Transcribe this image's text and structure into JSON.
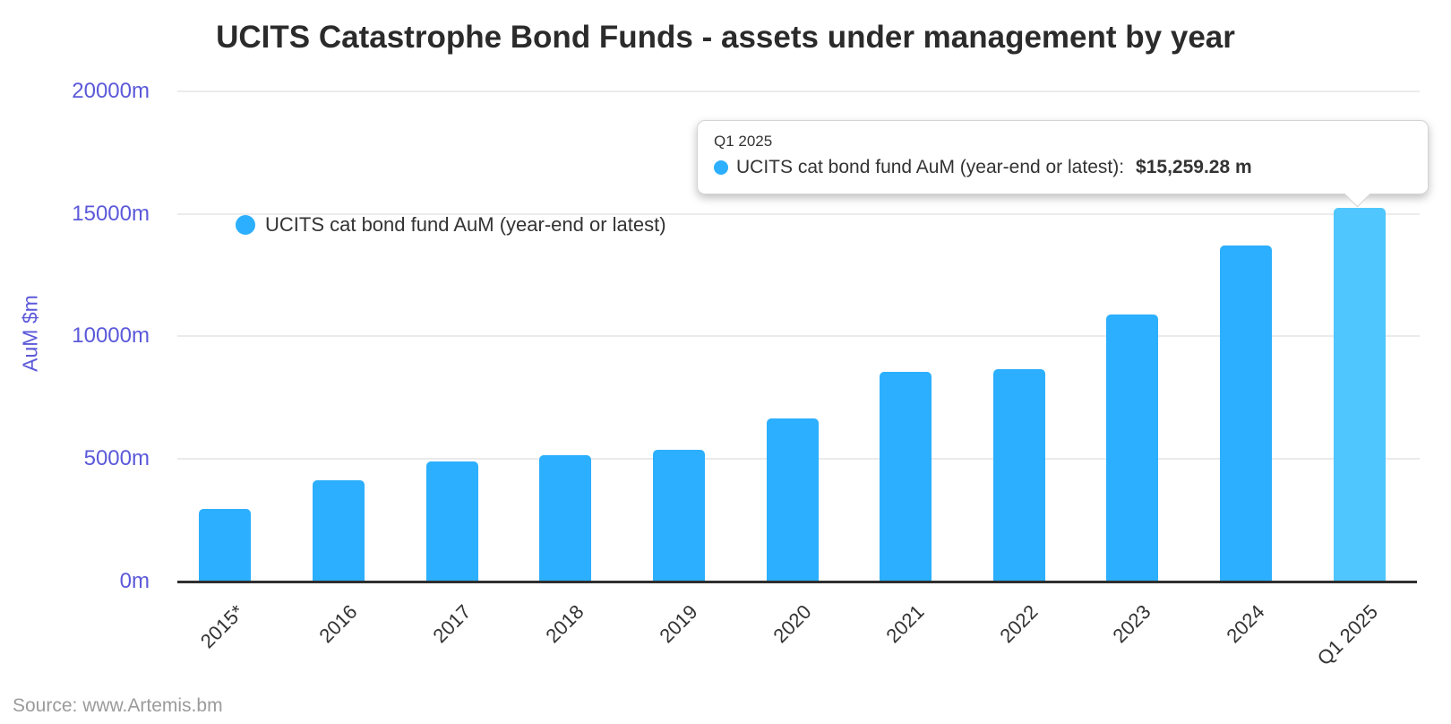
{
  "title": "UCITS Catastrophe Bond Funds - assets under management by year",
  "source": "Source: www.Artemis.bm",
  "legend": {
    "label": "UCITS cat bond fund AuM (year-end or latest)"
  },
  "tooltip": {
    "header": "Q1 2025",
    "series_label": "UCITS cat bond fund AuM (year-end or latest):",
    "value": "$15,259.28 m"
  },
  "y_axis": {
    "title": "AuM $m",
    "tick_values": [
      0,
      5000,
      10000,
      15000,
      20000
    ],
    "tick_labels": [
      "0m",
      "5000m",
      "10000m",
      "15000m",
      "20000m"
    ]
  },
  "chart_data": {
    "type": "bar",
    "title": "UCITS Catastrophe Bond Funds - assets under management by year",
    "xlabel": "",
    "ylabel": "AuM $m",
    "ylim": [
      0,
      20000
    ],
    "grid": true,
    "legend_position": "top-left-inside",
    "categories": [
      "2015*",
      "2016",
      "2017",
      "2018",
      "2019",
      "2020",
      "2021",
      "2022",
      "2023",
      "2024",
      "Q1 2025"
    ],
    "series": [
      {
        "name": "UCITS cat bond fund AuM (year-end or latest)",
        "values": [
          2950,
          4100,
          4870,
          5130,
          5350,
          6640,
          8560,
          8660,
          10870,
          13700,
          15259.28
        ]
      }
    ],
    "highlighted_category": "Q1 2025",
    "tooltip_point": {
      "category": "Q1 2025",
      "value": 15259.28,
      "formatted": "$15,259.28 m"
    },
    "colors": {
      "bar": "#2caffe",
      "bar_highlight": "#4fc6fe",
      "axis_label": "#5b59d9",
      "axis_line": "#2f2f2f",
      "gridline": "#ebebeb",
      "text": "#333333",
      "source_text": "#9b9b9b"
    }
  }
}
